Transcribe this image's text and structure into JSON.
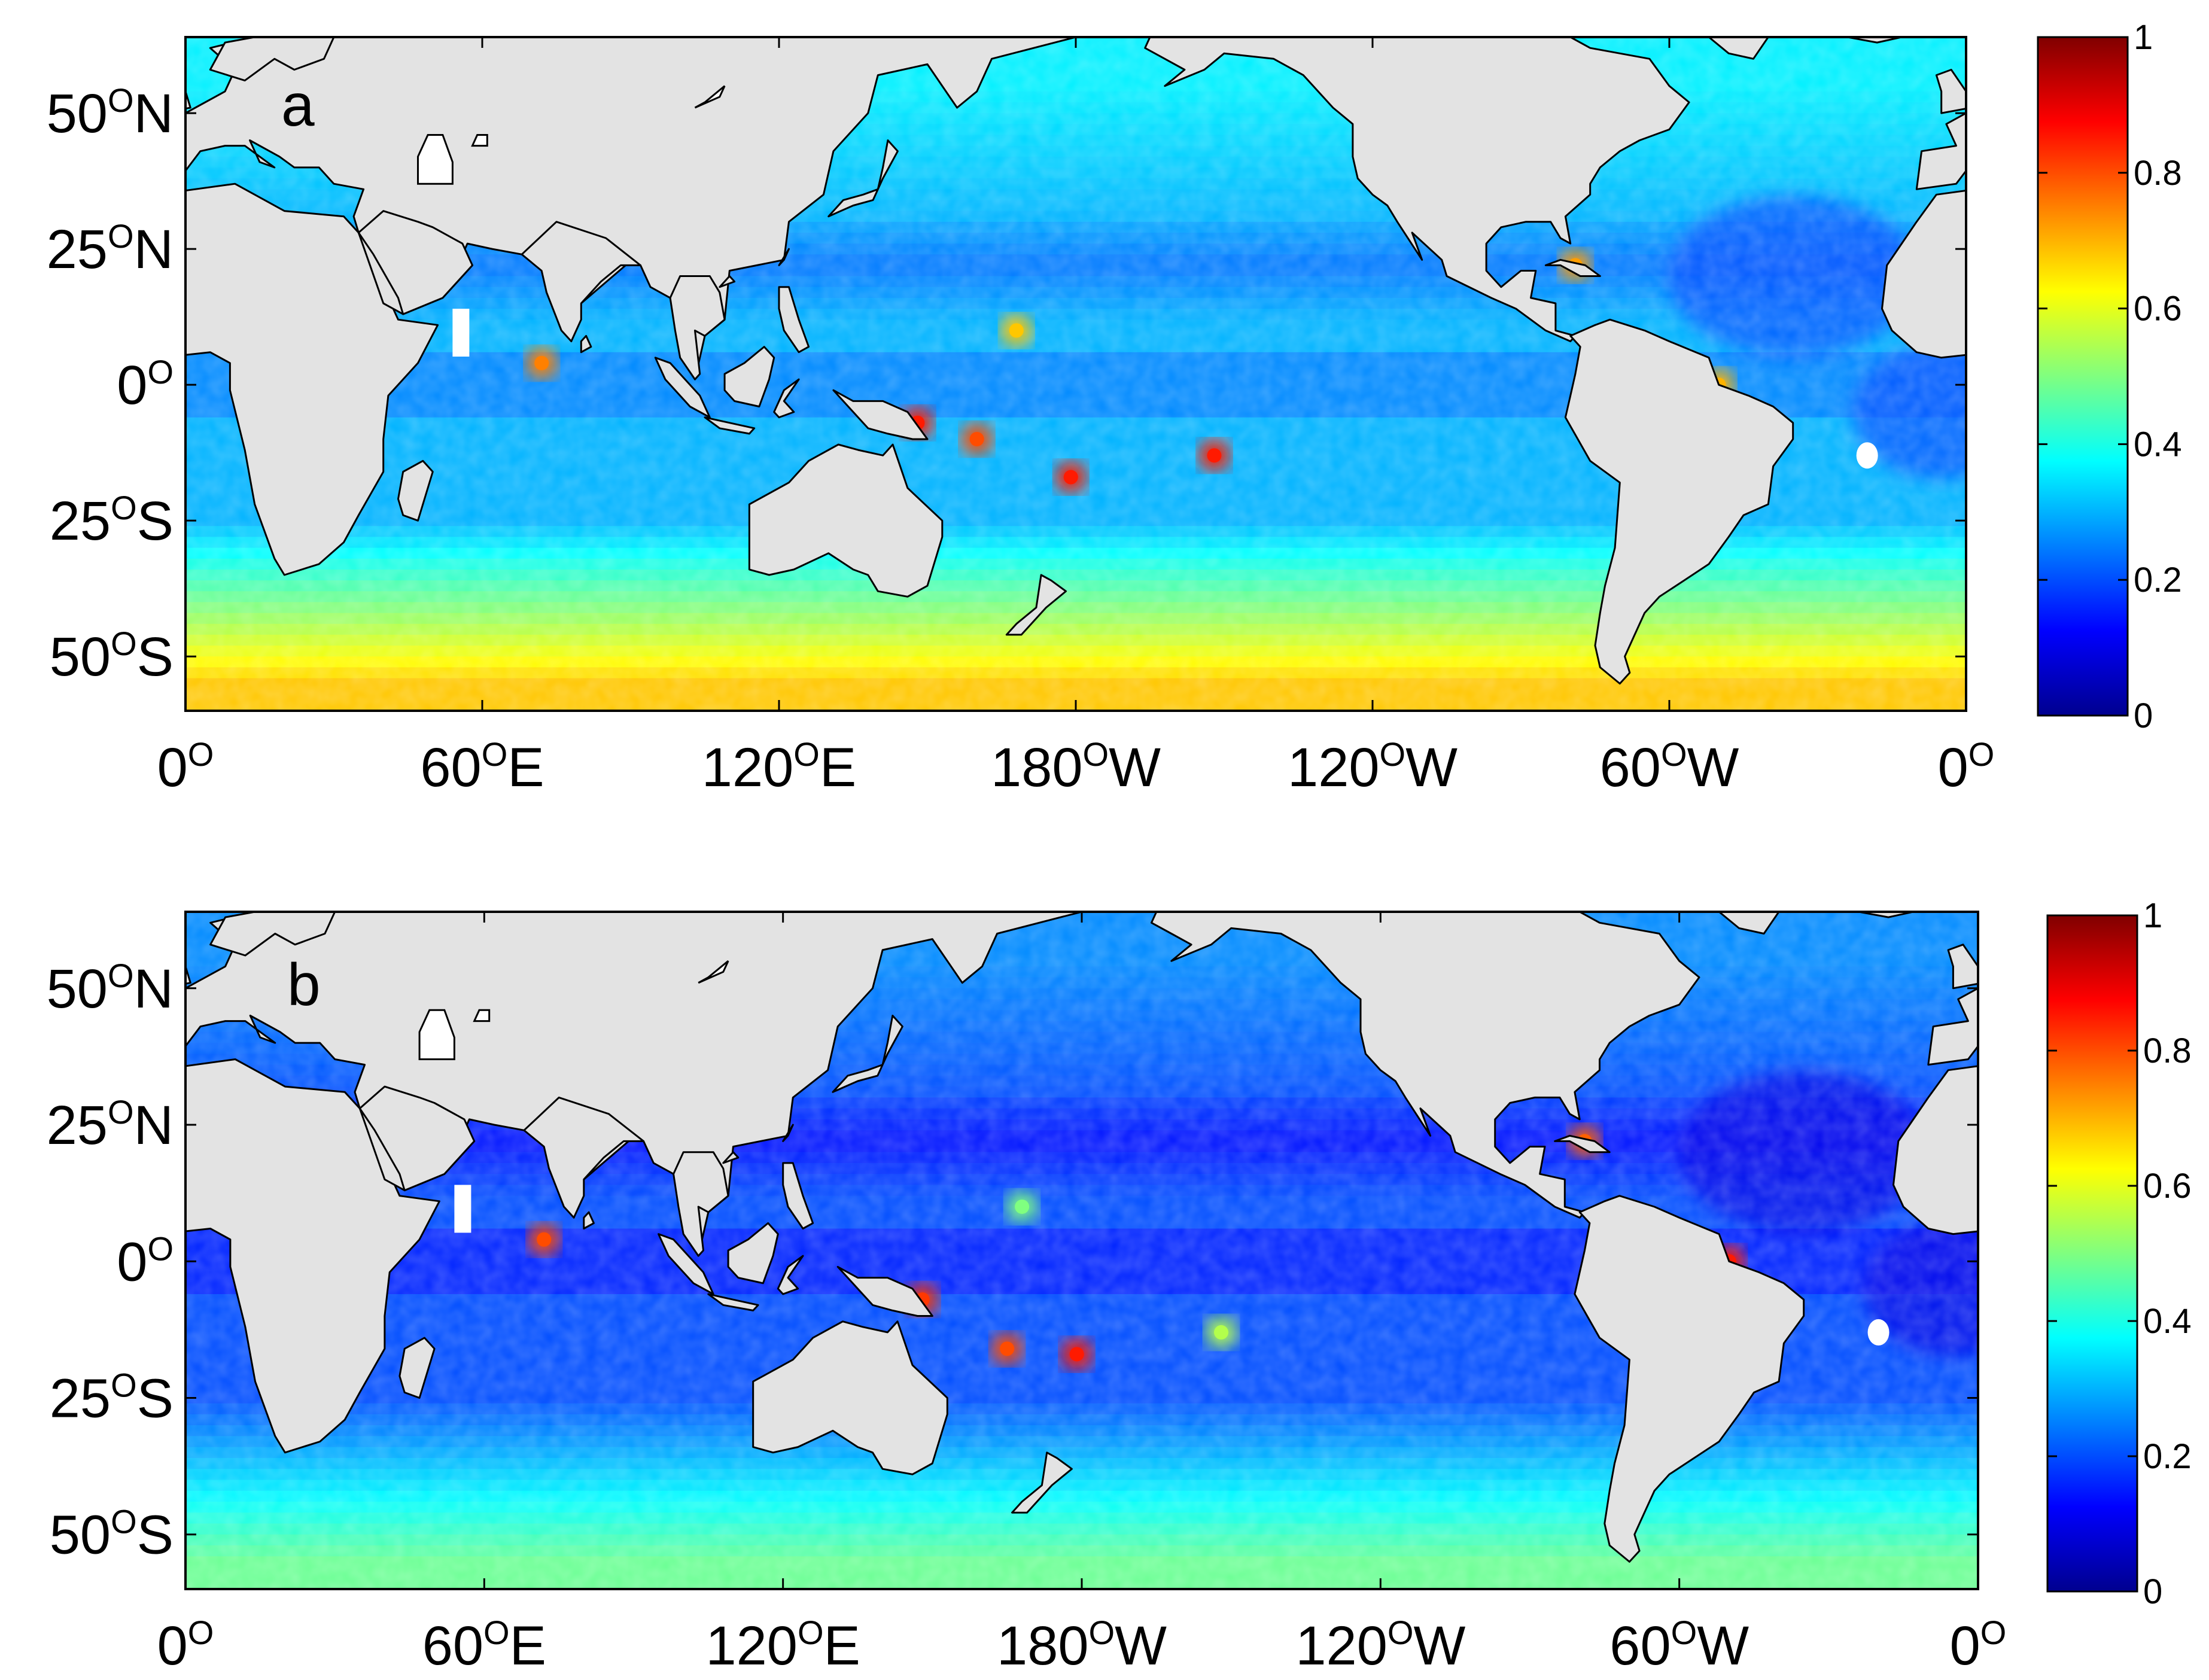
{
  "colors": {
    "land": "#e3e3e3",
    "coastline": "#000000",
    "missing": "#ffffff",
    "colormap": "jet"
  },
  "colorbar": {
    "range": [
      0,
      1
    ],
    "ticks": [
      "0",
      "0.2",
      "0.4",
      "0.6",
      "0.8",
      "1"
    ]
  },
  "lat_ticks": [
    {
      "value": "50",
      "suffix": "N"
    },
    {
      "value": "25",
      "suffix": "N"
    },
    {
      "value": "0",
      "suffix": ""
    },
    {
      "value": "25",
      "suffix": "S"
    },
    {
      "value": "50",
      "suffix": "S"
    }
  ],
  "lon_ticks": [
    {
      "value": "0",
      "suffix": ""
    },
    {
      "value": "60",
      "suffix": "E"
    },
    {
      "value": "120",
      "suffix": "E"
    },
    {
      "value": "180",
      "suffix": "W"
    },
    {
      "value": "120",
      "suffix": "W"
    },
    {
      "value": "60",
      "suffix": "W"
    },
    {
      "value": "0",
      "suffix": ""
    }
  ],
  "panels": [
    {
      "label": "a",
      "field": {
        "baseline": 0.3,
        "southern_ocean_peak": 0.68,
        "hotspots": [
          {
            "lon": 168,
            "lat": 10,
            "value": 0.68
          },
          {
            "lon": -152,
            "lat": -13,
            "value": 0.85
          },
          {
            "lon": 179,
            "lat": -17,
            "value": 0.85
          },
          {
            "lon": 148,
            "lat": -7,
            "value": 0.85
          },
          {
            "lon": 160,
            "lat": -10,
            "value": 0.8
          },
          {
            "lon": 72,
            "lat": 4,
            "value": 0.75
          },
          {
            "lon": -79,
            "lat": 22,
            "value": 0.72
          },
          {
            "lon": -50,
            "lat": 0,
            "value": 0.7
          }
        ]
      }
    },
    {
      "label": "b",
      "field": {
        "baseline": 0.2,
        "southern_ocean_peak": 0.48,
        "hotspots": [
          {
            "lon": 168,
            "lat": 10,
            "value": 0.5
          },
          {
            "lon": -152,
            "lat": -13,
            "value": 0.55
          },
          {
            "lon": 179,
            "lat": -17,
            "value": 0.85
          },
          {
            "lon": 148,
            "lat": -7,
            "value": 0.82
          },
          {
            "lon": 165,
            "lat": -16,
            "value": 0.8
          },
          {
            "lon": 72,
            "lat": 4,
            "value": 0.8
          },
          {
            "lon": -79,
            "lat": 22,
            "value": 0.78
          },
          {
            "lon": -50,
            "lat": 0,
            "value": 0.85
          }
        ]
      }
    }
  ]
}
